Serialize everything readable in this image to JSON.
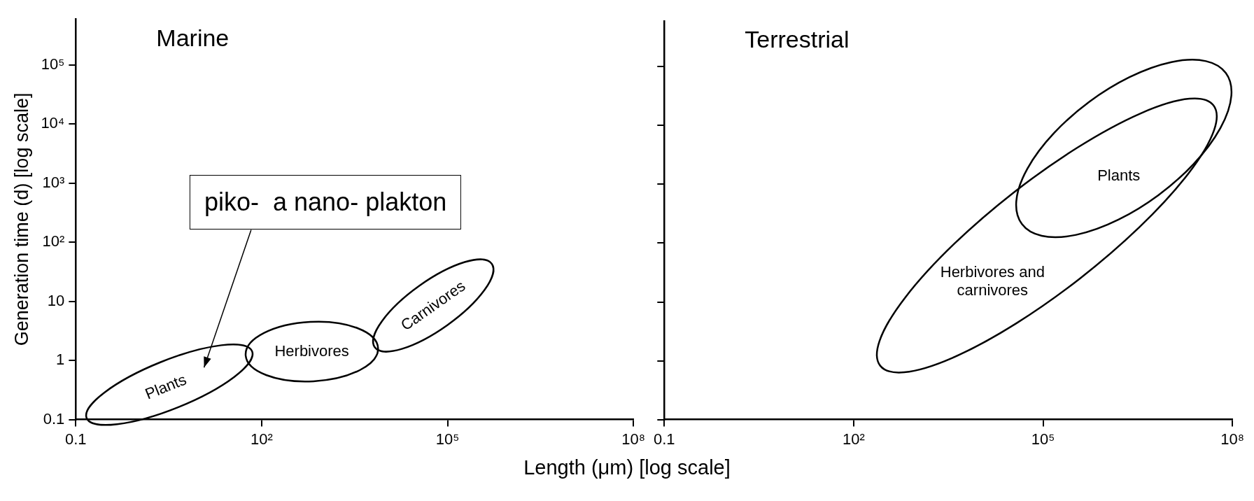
{
  "chart_data": [
    {
      "type": "scatter",
      "title": "Marine",
      "xlabel": "Length (μm) [log scale]",
      "ylabel": "Generation time (d) [log scale]",
      "log": "xy",
      "grid": false,
      "legend": false,
      "xlim": [
        0.1,
        100000000
      ],
      "ylim": [
        0.1,
        600000
      ],
      "xticks": [
        0.1,
        {
          "value": 100,
          "label": "10²"
        },
        {
          "value": 100000,
          "label": "10⁵"
        },
        {
          "value": 100000000,
          "label": "10⁸"
        }
      ],
      "yticks": [
        0.1,
        1,
        10,
        {
          "value": 100,
          "label": "10²"
        },
        {
          "value": 1000,
          "label": "10³"
        },
        {
          "value": 10000,
          "label": "10⁴"
        },
        {
          "value": 100000,
          "label": "10⁵"
        }
      ],
      "annotations": [
        "piko-  a nano- plakton",
        "Plants",
        "Herbivores",
        "Carnivores"
      ]
    },
    {
      "type": "scatter",
      "title": "Terrestrial",
      "log": "xy",
      "grid": false,
      "legend": false,
      "tick_labels": "x",
      "xlim": [
        0.1,
        100000000
      ],
      "ylim": [
        0.1,
        600000
      ],
      "xticks": [
        0.1,
        {
          "value": 100,
          "label": "10²"
        },
        {
          "value": 100000,
          "label": "10⁵"
        },
        {
          "value": 100000000,
          "label": "10⁸"
        }
      ],
      "yticks": [
        0.1,
        1,
        10,
        100,
        1000,
        10000,
        100000
      ],
      "annotations": [
        "Plants",
        "Herbivores and carnivores"
      ]
    }
  ]
}
